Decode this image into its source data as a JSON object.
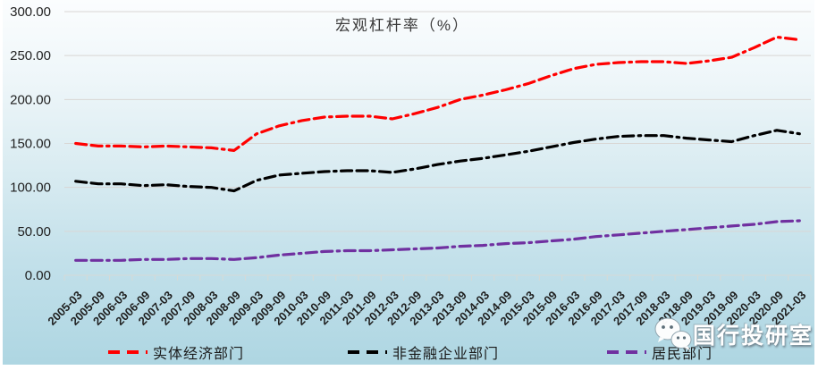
{
  "chart_data": {
    "type": "line",
    "title": "宏观杠杆率（%）",
    "categories": [
      "2005-03",
      "2005-09",
      "2006-03",
      "2006-09",
      "2007-03",
      "2007-09",
      "2008-03",
      "2008-09",
      "2009-03",
      "2009-09",
      "2010-03",
      "2010-09",
      "2011-03",
      "2011-09",
      "2012-03",
      "2012-09",
      "2013-03",
      "2013-09",
      "2014-03",
      "2014-09",
      "2015-03",
      "2015-09",
      "2016-03",
      "2016-09",
      "2017-03",
      "2017-09",
      "2018-03",
      "2018-09",
      "2019-03",
      "2019-09",
      "2020-03",
      "2020-09",
      "2021-03"
    ],
    "series": [
      {
        "name": "实体经济部门",
        "color": "#FF0000",
        "line_style": "dash-dash-dot",
        "values": [
          150,
          147,
          147,
          146,
          147,
          146,
          145,
          142,
          161,
          170,
          176,
          180,
          181,
          181,
          178,
          184,
          191,
          200,
          205,
          211,
          218,
          227,
          235,
          240,
          242,
          243,
          243,
          241,
          244,
          248,
          259,
          271,
          268
        ]
      },
      {
        "name": "非金融企业部门",
        "color": "#000000",
        "line_style": "dash-dash-dot",
        "values": [
          107,
          104,
          104,
          102,
          103,
          101,
          100,
          96,
          108,
          114,
          116,
          118,
          119,
          119,
          117,
          121,
          126,
          130,
          133,
          137,
          141,
          146,
          151,
          155,
          158,
          159,
          159,
          156,
          154,
          152,
          159,
          165,
          161
        ]
      },
      {
        "name": "居民部门",
        "color": "#7030A0",
        "line_style": "dash-dash-dot",
        "values": [
          17,
          17,
          17,
          18,
          18,
          19,
          19,
          18,
          20,
          23,
          25,
          27,
          28,
          28,
          29,
          30,
          31,
          33,
          34,
          36,
          37,
          39,
          41,
          44,
          46,
          48,
          50,
          52,
          54,
          56,
          58,
          61,
          62
        ]
      }
    ],
    "ylim": [
      0,
      300
    ],
    "y_tick_step": 50,
    "y_tick_labels": [
      "300.00",
      "250.00",
      "200.00",
      "150.00",
      "100.00",
      "50.00",
      "0.00"
    ],
    "xlabel": "",
    "ylabel": "",
    "grid": true,
    "legend_position": "bottom",
    "x_label_rotation_deg": 45
  },
  "watermark": {
    "text": "国行投研室",
    "icon": "wechat-logo-icon"
  },
  "style": {
    "background_gradient_top": "#FBFDFE",
    "background_gradient_bottom": "#AED6E2",
    "gridline_color": "#D9D6D4",
    "axis_color": "#D6DAD6",
    "tick_label_color": "#1f1f1f"
  }
}
